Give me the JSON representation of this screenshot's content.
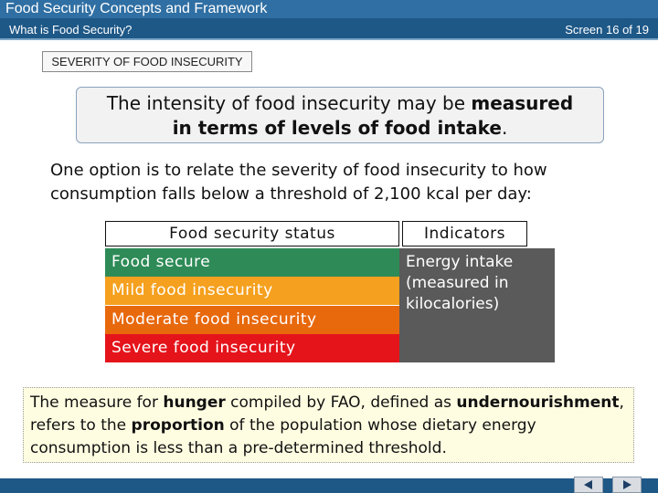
{
  "header": {
    "course_title": "Food Security Concepts and Framework",
    "topic": "What is Food Security?",
    "screen": "Screen 16 of 19"
  },
  "section_label": "SEVERITY OF FOOD INSECURITY",
  "intro": [
    "The intensity of food insecurity may be ",
    "measured in terms of levels of food intake",
    "."
  ],
  "paragraph": "One option is to relate the severity of food insecurity to how consumption falls below a threshold of 2,100 kcal per day:",
  "table": {
    "headers": [
      "Food security status",
      "Indicators"
    ],
    "rows": [
      "Food secure",
      "Mild food insecurity",
      "Moderate food insecurity",
      "Severe food insecurity"
    ],
    "indicator": "Energy intake (measured in kilocalories)"
  },
  "note": [
    "The measure for ",
    "hunger",
    " compiled by FAO, defined as ",
    "undernourishment",
    ", refers to the ",
    "proportion",
    " of the population whose dietary energy consumption is less than a pre-determined threshold."
  ]
}
